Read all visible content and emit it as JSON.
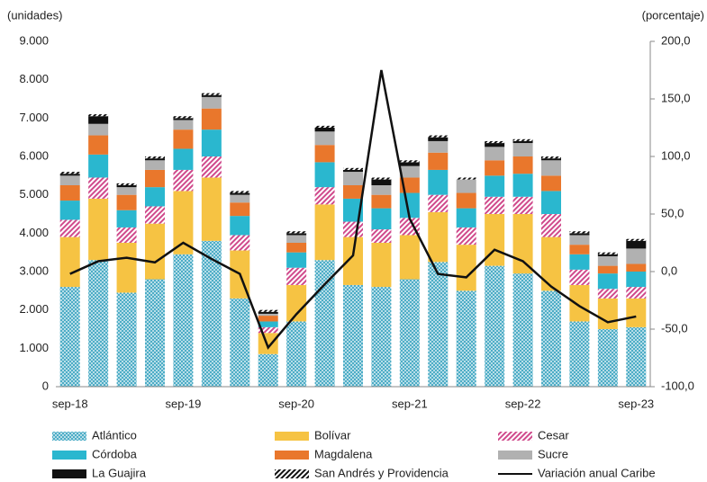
{
  "chart_data": {
    "type": "bar",
    "y_label": "(unidades)",
    "y2_label": "(porcentaje)",
    "categories": [
      "sep-18",
      null,
      null,
      null,
      "sep-19",
      null,
      null,
      null,
      "sep-20",
      null,
      null,
      null,
      "sep-21",
      null,
      null,
      null,
      "sep-22",
      null,
      null,
      null,
      "sep-23"
    ],
    "stacked": true,
    "series": [
      {
        "name": "Atlántico",
        "type": "bar",
        "color": "#4bacc6",
        "fill_style": "crosshatch",
        "values": [
          2600,
          3300,
          2450,
          2800,
          3450,
          3800,
          2300,
          850,
          1700,
          3300,
          2650,
          2600,
          2800,
          3250,
          2500,
          3150,
          2950,
          2500,
          1700,
          1500,
          1550
        ]
      },
      {
        "name": "Bolívar",
        "type": "bar",
        "color": "#f6c343",
        "fill_style": "solid",
        "values": [
          1300,
          1600,
          1300,
          1450,
          1650,
          1650,
          1250,
          550,
          950,
          1450,
          1250,
          1150,
          1150,
          1300,
          1200,
          1350,
          1550,
          1400,
          950,
          800,
          750
        ]
      },
      {
        "name": "Cesar",
        "type": "bar",
        "color": "#d04a8c",
        "fill_style": "diagonal",
        "values": [
          450,
          550,
          400,
          450,
          550,
          550,
          400,
          150,
          450,
          450,
          400,
          350,
          450,
          450,
          450,
          450,
          450,
          600,
          400,
          250,
          300
        ]
      },
      {
        "name": "Córdoba",
        "type": "bar",
        "color": "#2ab7cf",
        "fill_style": "solid",
        "values": [
          500,
          600,
          450,
          500,
          550,
          700,
          500,
          150,
          400,
          650,
          600,
          550,
          650,
          650,
          500,
          550,
          600,
          600,
          400,
          400,
          400
        ]
      },
      {
        "name": "Magdalena",
        "type": "bar",
        "color": "#e9772c",
        "fill_style": "solid",
        "values": [
          400,
          500,
          400,
          450,
          500,
          550,
          350,
          150,
          250,
          450,
          350,
          350,
          400,
          450,
          400,
          400,
          450,
          400,
          250,
          200,
          200
        ]
      },
      {
        "name": "Sucre",
        "type": "bar",
        "color": "#b1b1b1",
        "fill_style": "solid",
        "values": [
          250,
          300,
          200,
          250,
          250,
          300,
          200,
          50,
          200,
          350,
          350,
          250,
          300,
          300,
          350,
          350,
          350,
          400,
          250,
          250,
          400
        ]
      },
      {
        "name": "La Guajira",
        "type": "bar",
        "color": "#111111",
        "fill_style": "solid",
        "values": [
          50,
          200,
          50,
          50,
          50,
          50,
          50,
          50,
          50,
          100,
          50,
          150,
          100,
          100,
          0,
          100,
          50,
          50,
          50,
          50,
          200
        ]
      },
      {
        "name": "San Andrés y Providencia",
        "type": "bar",
        "color": "#111111",
        "fill_style": "diagonal",
        "values": [
          50,
          50,
          50,
          50,
          50,
          50,
          50,
          50,
          50,
          50,
          50,
          50,
          50,
          50,
          50,
          50,
          50,
          50,
          50,
          50,
          50
        ]
      },
      {
        "name": "Variación anual Caribe",
        "type": "line",
        "axis": "y2",
        "color": "#111111",
        "values": [
          -2,
          9,
          12,
          8,
          25,
          11,
          -2,
          -66,
          -37,
          -11,
          14,
          175,
          46,
          -2,
          -5,
          19,
          9,
          -13,
          -30,
          -44,
          -39
        ]
      }
    ],
    "ylim": [
      0,
      9000
    ],
    "yticks": [
      0,
      {
        "value": 1000,
        "label": "1.000"
      },
      {
        "value": 2000,
        "label": "2.000"
      },
      {
        "value": 3000,
        "label": "3.000"
      },
      {
        "value": 4000,
        "label": "4.000"
      },
      {
        "value": 5000,
        "label": "5.000"
      },
      {
        "value": 6000,
        "label": "6.000"
      },
      {
        "value": 7000,
        "label": "7.000"
      },
      {
        "value": 8000,
        "label": "8.000"
      },
      {
        "value": 9000,
        "label": "9.000"
      }
    ],
    "y2lim": [
      -100,
      200
    ],
    "y2ticks": [
      {
        "value": -100,
        "label": "-100,0"
      },
      {
        "value": -50,
        "label": "-50,0"
      },
      {
        "value": 0,
        "label": "0,0"
      },
      {
        "value": 50,
        "label": "50,0"
      },
      {
        "value": 100,
        "label": "100,0"
      },
      {
        "value": 150,
        "label": "150,0"
      },
      {
        "value": 200,
        "label": "200,0"
      }
    ],
    "grid": false,
    "legend": "bottom"
  }
}
